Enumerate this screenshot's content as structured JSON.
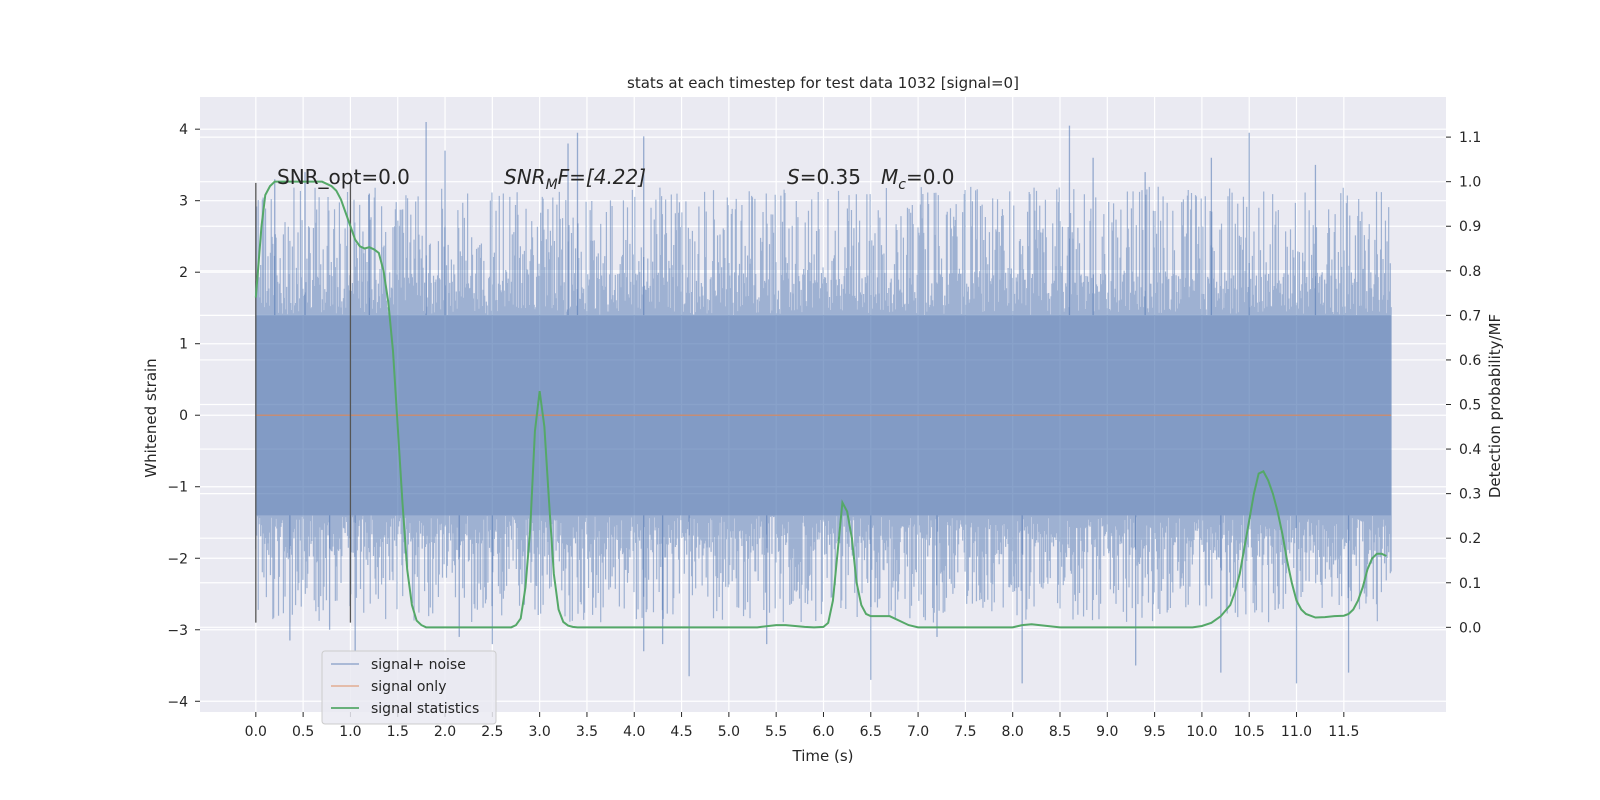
{
  "chart_data": {
    "type": "line",
    "title": "stats at each timestep for test data 1032 [signal=0]",
    "xlabel": "Time (s)",
    "ylabel_left": "Whitened strain",
    "ylabel_right": "Detection probability/MF",
    "xlim": [
      -0.59,
      12.58
    ],
    "ylim_left": [
      -4.15,
      4.45
    ],
    "ylim_right": [
      -0.19,
      1.19
    ],
    "grid": true,
    "legend_position": "lower-left",
    "x_ticks": [
      0.0,
      0.5,
      1.0,
      1.5,
      2.0,
      2.5,
      3.0,
      3.5,
      4.0,
      4.5,
      5.0,
      5.5,
      6.0,
      6.5,
      7.0,
      7.5,
      8.0,
      8.5,
      9.0,
      9.5,
      10.0,
      10.5,
      11.0,
      11.5
    ],
    "x_tick_labels": [
      "0.0",
      "0.5",
      "1.0",
      "1.5",
      "2.0",
      "2.5",
      "3.0",
      "3.5",
      "4.0",
      "4.5",
      "5.0",
      "5.5",
      "6.0",
      "6.5",
      "7.0",
      "7.5",
      "8.0",
      "8.5",
      "9.0",
      "9.5",
      "10.0",
      "10.5",
      "11.0",
      "11.5"
    ],
    "y_left_ticks": [
      4,
      3,
      2,
      1,
      0,
      -1,
      -2,
      -3,
      -4
    ],
    "y_left_tick_labels": [
      "4",
      "3",
      "2",
      "1",
      "0",
      "−1",
      "−2",
      "−3",
      "−4"
    ],
    "y_right_ticks": [
      1.1,
      1.0,
      0.9,
      0.8,
      0.7,
      0.6,
      0.5,
      0.4,
      0.3,
      0.2,
      0.1,
      0.0
    ],
    "y_right_tick_labels": [
      "1.1",
      "1.0",
      "0.9",
      "0.8",
      "0.7",
      "0.6",
      "0.5",
      "0.4",
      "0.3",
      "0.2",
      "0.1",
      "0.0"
    ],
    "noise_series": {
      "name": "signal+ noise",
      "x_range": [
        0.0,
        12.0
      ],
      "dense_band": [
        -1.4,
        1.4
      ],
      "typical_extremes": [
        -2.9,
        3.2
      ],
      "spikes": [
        {
          "x": 0.2,
          "y": 3.3
        },
        {
          "x": 0.36,
          "y": -3.15
        },
        {
          "x": 0.52,
          "y": 3.4
        },
        {
          "x": 0.78,
          "y": -3.0
        },
        {
          "x": 1.05,
          "y": -3.3
        },
        {
          "x": 1.2,
          "y": 3.1
        },
        {
          "x": 1.8,
          "y": 4.1
        },
        {
          "x": 2.0,
          "y": 3.7
        },
        {
          "x": 2.15,
          "y": -3.1
        },
        {
          "x": 2.5,
          "y": -3.2
        },
        {
          "x": 3.3,
          "y": 3.8
        },
        {
          "x": 3.4,
          "y": 3.95
        },
        {
          "x": 4.1,
          "y": 3.9
        },
        {
          "x": 4.1,
          "y": -3.3
        },
        {
          "x": 4.3,
          "y": -3.2
        },
        {
          "x": 4.58,
          "y": -3.65
        },
        {
          "x": 5.4,
          "y": -3.2
        },
        {
          "x": 6.5,
          "y": -3.7
        },
        {
          "x": 7.2,
          "y": -3.1
        },
        {
          "x": 8.1,
          "y": -3.75
        },
        {
          "x": 8.6,
          "y": 4.05
        },
        {
          "x": 8.85,
          "y": 3.6
        },
        {
          "x": 9.3,
          "y": -3.5
        },
        {
          "x": 9.4,
          "y": 3.4
        },
        {
          "x": 10.2,
          "y": -3.6
        },
        {
          "x": 10.1,
          "y": 3.6
        },
        {
          "x": 10.5,
          "y": 3.95
        },
        {
          "x": 11.0,
          "y": -3.75
        },
        {
          "x": 11.2,
          "y": 3.5
        },
        {
          "x": 11.55,
          "y": -3.6
        }
      ]
    },
    "signal_series": {
      "name": "signal only",
      "x": [
        0.0,
        12.0
      ],
      "y": [
        0.0,
        0.0
      ]
    },
    "stat_series": {
      "name": "signal statistics",
      "axis": "right",
      "x": [
        0.0,
        0.03,
        0.06,
        0.1,
        0.15,
        0.2,
        0.3,
        0.45,
        0.6,
        0.7,
        0.8,
        0.85,
        0.9,
        0.95,
        1.0,
        1.05,
        1.1,
        1.15,
        1.2,
        1.25,
        1.3,
        1.35,
        1.4,
        1.45,
        1.5,
        1.55,
        1.6,
        1.65,
        1.7,
        1.75,
        1.8,
        1.9,
        2.0,
        2.2,
        2.5,
        2.6,
        2.7,
        2.75,
        2.8,
        2.85,
        2.9,
        2.95,
        3.0,
        3.05,
        3.1,
        3.15,
        3.2,
        3.25,
        3.3,
        3.35,
        3.4,
        3.5,
        3.7,
        4.0,
        4.5,
        5.0,
        5.3,
        5.5,
        5.6,
        5.7,
        5.8,
        5.9,
        6.0,
        6.05,
        6.1,
        6.15,
        6.2,
        6.25,
        6.3,
        6.35,
        6.4,
        6.45,
        6.5,
        6.6,
        6.7,
        6.8,
        6.9,
        7.0,
        7.5,
        8.0,
        8.1,
        8.2,
        8.5,
        9.0,
        9.5,
        9.9,
        10.0,
        10.1,
        10.2,
        10.3,
        10.35,
        10.4,
        10.45,
        10.5,
        10.55,
        10.6,
        10.65,
        10.7,
        10.75,
        10.8,
        10.85,
        10.9,
        10.95,
        11.0,
        11.05,
        11.1,
        11.2,
        11.3,
        11.4,
        11.5,
        11.55,
        11.6,
        11.65,
        11.7,
        11.75,
        11.8,
        11.85,
        11.9,
        11.95
      ],
      "y": [
        0.74,
        0.82,
        0.9,
        0.97,
        0.99,
        1.0,
        1.0,
        1.0,
        1.0,
        1.0,
        0.99,
        0.98,
        0.96,
        0.93,
        0.9,
        0.87,
        0.855,
        0.85,
        0.853,
        0.848,
        0.84,
        0.8,
        0.73,
        0.62,
        0.45,
        0.28,
        0.13,
        0.05,
        0.015,
        0.005,
        0.0,
        0.0,
        0.0,
        0.0,
        0.0,
        0.0,
        0.0,
        0.005,
        0.02,
        0.09,
        0.22,
        0.44,
        0.53,
        0.45,
        0.28,
        0.12,
        0.04,
        0.012,
        0.004,
        0.001,
        0.0,
        0.0,
        0.0,
        0.0,
        0.0,
        0.0,
        0.0,
        0.005,
        0.005,
        0.003,
        0.001,
        0.0,
        0.001,
        0.01,
        0.06,
        0.17,
        0.28,
        0.26,
        0.2,
        0.1,
        0.05,
        0.03,
        0.025,
        0.025,
        0.025,
        0.015,
        0.005,
        0.0,
        0.0,
        0.0,
        0.005,
        0.007,
        0.0,
        0.0,
        0.0,
        0.0,
        0.003,
        0.01,
        0.025,
        0.05,
        0.08,
        0.12,
        0.18,
        0.24,
        0.3,
        0.345,
        0.35,
        0.33,
        0.3,
        0.26,
        0.21,
        0.15,
        0.1,
        0.06,
        0.04,
        0.03,
        0.022,
        0.023,
        0.025,
        0.026,
        0.03,
        0.04,
        0.06,
        0.09,
        0.13,
        0.155,
        0.165,
        0.165,
        0.16
      ]
    },
    "vlines": [
      {
        "x": 0.0,
        "y": [
          -2.9,
          3.25
        ]
      },
      {
        "x": 1.0,
        "y": [
          -2.9,
          3.25
        ]
      }
    ],
    "colors": {
      "axes_bg": "#eaeaf2",
      "grid": "#ffffff",
      "noise": "#4c72b0",
      "signal": "#dd8452",
      "stat": "#55a868",
      "vline": "#555555",
      "text": "#262626"
    }
  },
  "annotations": {
    "snr_opt": "SNR_opt=0.0",
    "snr_mf_base": "SNR",
    "snr_mf_sub": "M",
    "snr_mf_rest": "F=[4.22]",
    "s_label": "S",
    "s_value": "=0.35",
    "mc_base": "M",
    "mc_sub": "c",
    "mc_value": "=0.0"
  },
  "legend": {
    "items": [
      {
        "label": "signal+ noise",
        "color": "#4c72b0"
      },
      {
        "label": "signal only",
        "color": "#dd8452"
      },
      {
        "label": "signal statistics",
        "color": "#55a868"
      }
    ]
  }
}
